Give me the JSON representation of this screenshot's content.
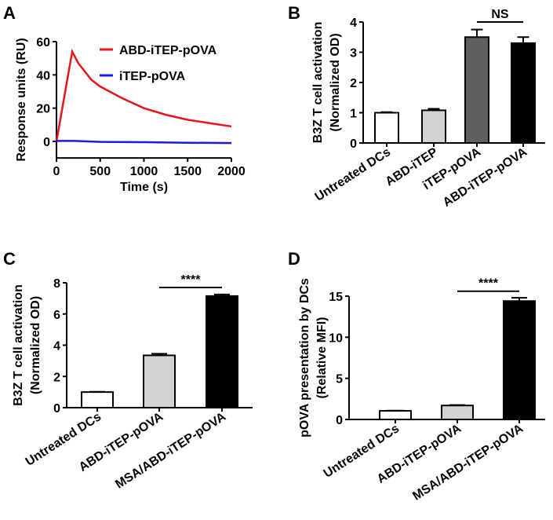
{
  "chart_data": [
    {
      "panel": "A",
      "type": "line",
      "xlabel": "Time (s)",
      "ylabel": "Response units (RU)",
      "xlim": [
        0,
        2000
      ],
      "ylim": [
        -10,
        60
      ],
      "xticks": [
        0,
        500,
        1000,
        1500,
        2000
      ],
      "yticks": [
        0,
        20,
        40,
        60
      ],
      "legend_position": "top-right",
      "series": [
        {
          "name": "ABD-iTEP-pOVA",
          "color": "#e8141b",
          "x": [
            0,
            180,
            250,
            400,
            500,
            750,
            1000,
            1250,
            1500,
            1750,
            2000
          ],
          "y": [
            0,
            54,
            47,
            37,
            33,
            26,
            20,
            16,
            13,
            11,
            9
          ]
        },
        {
          "name": "iTEP-pOVA",
          "color": "#1a1adb",
          "x": [
            0,
            200,
            500,
            1000,
            1500,
            2000
          ],
          "y": [
            0.3,
            0.3,
            -0.3,
            -0.5,
            -0.8,
            -1
          ]
        }
      ]
    },
    {
      "panel": "B",
      "type": "bar",
      "ylabel": [
        "B3Z T cell activation",
        "(Normalized OD)"
      ],
      "ylim": [
        0,
        4
      ],
      "yticks": [
        0,
        1,
        2,
        3,
        4
      ],
      "categories": [
        "Untreated DCs",
        "ABD-iTEP",
        "iTEP-pOVA",
        "ABD-iTEP-pOVA"
      ],
      "values": [
        1.0,
        1.08,
        3.5,
        3.3
      ],
      "errors": [
        0.02,
        0.05,
        0.25,
        0.2
      ],
      "colors": [
        "#ffffff",
        "#d3d3d3",
        "#5f5f5f",
        "#000000"
      ],
      "significance": {
        "label": "NS",
        "from": 2,
        "to": 3,
        "level": 4.0
      }
    },
    {
      "panel": "C",
      "type": "bar",
      "ylabel": [
        "B3Z T cell activation",
        "(Normalized OD)"
      ],
      "ylim": [
        0,
        8
      ],
      "yticks": [
        0,
        2,
        4,
        6,
        8
      ],
      "categories": [
        "Untreated DCs",
        "ABD-iTEP-pOVA",
        "MSA/ABD-iTEP-pOVA"
      ],
      "values": [
        1.0,
        3.35,
        7.15
      ],
      "errors": [
        0.02,
        0.1,
        0.1
      ],
      "colors": [
        "#ffffff",
        "#d3d3d3",
        "#000000"
      ],
      "significance": {
        "label": "****",
        "from": 1,
        "to": 2,
        "level": 7.7
      }
    },
    {
      "panel": "D",
      "type": "bar",
      "ylabel": [
        "pOVA presentation by DCs",
        "(Relative MFI)"
      ],
      "ylim": [
        0,
        15
      ],
      "yticks": [
        0,
        5,
        10,
        15
      ],
      "categories": [
        "Untreated DCs",
        "ABD-iTEP-pOVA",
        "MSA/ABD-iTEP-pOVA"
      ],
      "values": [
        1.05,
        1.7,
        14.4
      ],
      "errors": [
        0.02,
        0.05,
        0.4
      ],
      "colors": [
        "#ffffff",
        "#d3d3d3",
        "#000000"
      ],
      "significance": {
        "label": "****",
        "from": 1,
        "to": 2,
        "level": 15.6
      }
    }
  ]
}
